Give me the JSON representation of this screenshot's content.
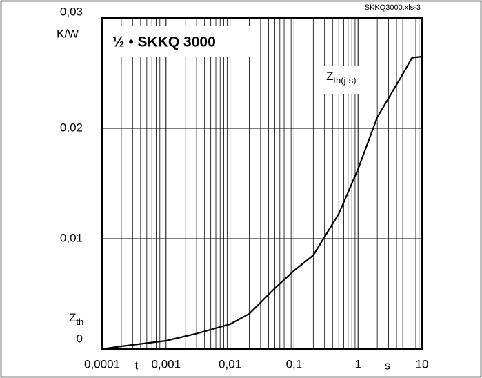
{
  "chart_data": {
    "type": "line",
    "title": "½ • SKKQ 3000",
    "file_label": "SKKQ3000.xls-3",
    "y_unit": "K/W",
    "ylabel": {
      "text": "Z",
      "sub": "th"
    },
    "xlabel": "t",
    "x_unit": "s",
    "xscale": "log",
    "xlim": [
      0.0001,
      10
    ],
    "xticks": [
      {
        "value": 0.0001,
        "label": "0,0001"
      },
      {
        "value": 0.001,
        "label": "0,001"
      },
      {
        "value": 0.01,
        "label": "0,01"
      },
      {
        "value": 0.1,
        "label": "0,1"
      },
      1,
      10
    ],
    "ylim": [
      0,
      0.03
    ],
    "yticks": [
      0,
      {
        "value": 0.01,
        "label": "0,01"
      },
      {
        "value": 0.02,
        "label": "0,02"
      },
      {
        "value": 0.03,
        "label": "0,03"
      }
    ],
    "grid": true,
    "minor_grid": true,
    "series": [
      {
        "name": {
          "text": "Z",
          "sub": "th(j-s)"
        },
        "color": "#000000",
        "x": [
          0.0001,
          0.0002,
          0.001,
          0.003,
          0.01,
          0.02,
          0.05,
          0.1,
          0.2,
          0.5,
          1,
          2,
          5,
          7,
          10
        ],
        "values": [
          0,
          0.00025,
          0.00075,
          0.0014,
          0.00225,
          0.0032,
          0.0055,
          0.0071,
          0.0085,
          0.01225,
          0.0163,
          0.021,
          0.0249,
          0.0264,
          0.0265
        ]
      }
    ]
  }
}
